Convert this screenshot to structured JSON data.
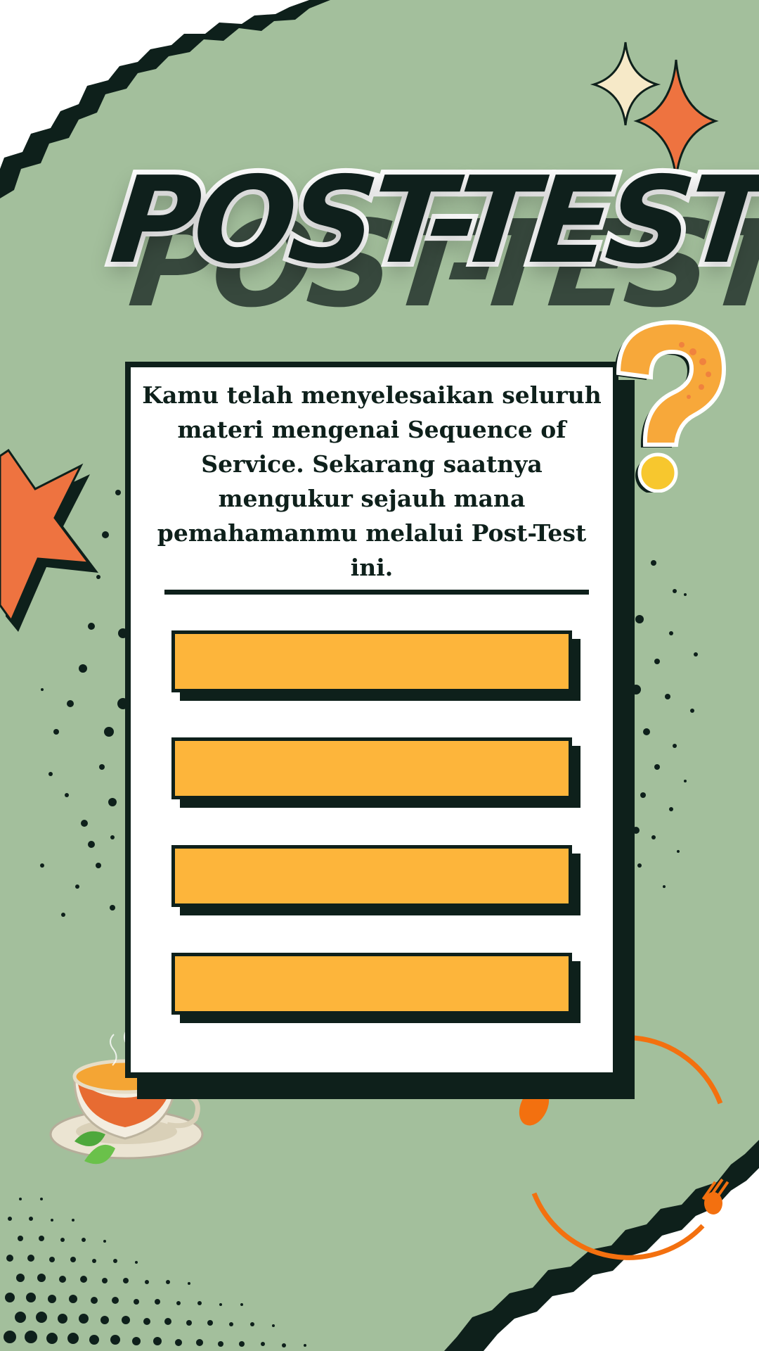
{
  "title": "POST-TEST",
  "intro_text": "Kamu telah menyelesaikan seluruh materi mengenai Sequence of Service. Sekarang saatnya mengukur sejauh mana pemahamanmu melalui Post-Test ini.",
  "options": [
    {
      "label": ""
    },
    {
      "label": ""
    },
    {
      "label": ""
    },
    {
      "label": ""
    }
  ],
  "colors": {
    "background": "#a3bf9c",
    "dark": "#0e201b",
    "button": "#fdb53b",
    "accent_orange": "#ee7340",
    "cream": "#f6e9c8"
  },
  "icons": [
    "sparkle-icon",
    "question-mark-icon",
    "star-icon",
    "tea-cup-icon",
    "spoon-fork-ring-icon"
  ]
}
